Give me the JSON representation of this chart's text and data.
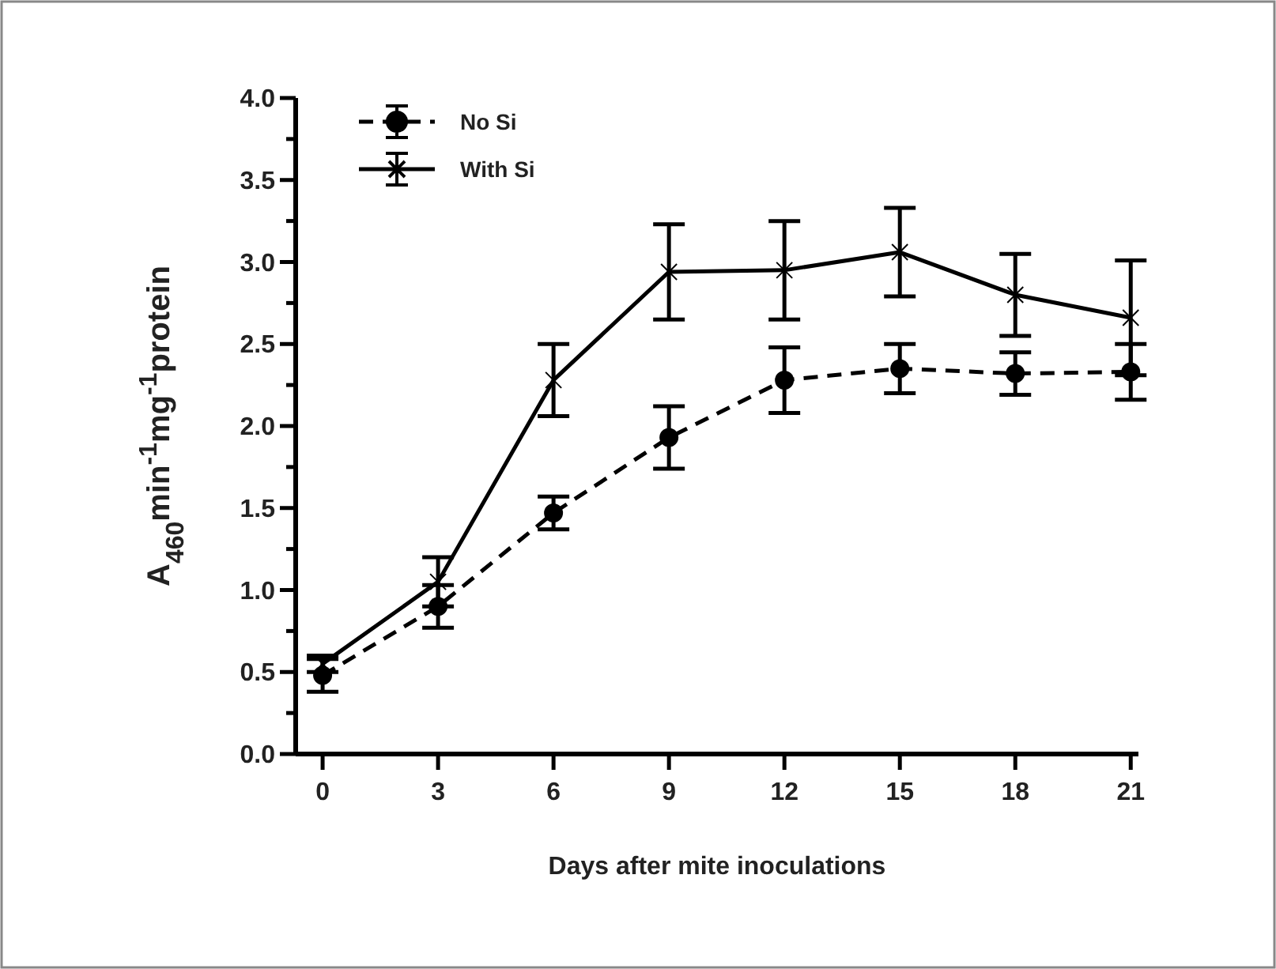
{
  "chart_data": {
    "type": "line",
    "xlabel": "Days after mite inoculations",
    "ylabel": "A$_{460}$min$^{-1}$mg$^{-1}$protein",
    "x": [
      0,
      3,
      6,
      9,
      12,
      15,
      18,
      21
    ],
    "xlim": [
      -0.7,
      21.2
    ],
    "xticks": [
      0,
      3,
      6,
      9,
      12,
      15,
      18,
      21
    ],
    "ylim": [
      0,
      4
    ],
    "yticks": [
      {
        "value": 0,
        "label": "0.0"
      },
      {
        "value": 0.25,
        "label": null
      },
      0.5,
      {
        "value": 0.75,
        "label": null
      },
      {
        "value": 1,
        "label": "1.0"
      },
      {
        "value": 1.25,
        "label": null
      },
      1.5,
      {
        "value": 1.75,
        "label": null
      },
      {
        "value": 2,
        "label": "2.0"
      },
      {
        "value": 2.25,
        "label": null
      },
      2.5,
      {
        "value": 2.75,
        "label": null
      },
      {
        "value": 3,
        "label": "3.0"
      },
      {
        "value": 3.25,
        "label": null
      },
      3.5,
      {
        "value": 3.75,
        "label": null
      },
      {
        "value": 4,
        "label": "4.0"
      }
    ],
    "grid": false,
    "legend": "top left",
    "series": [
      {
        "name": "No Si",
        "color": "#000000",
        "marker": "circle",
        "line_style": "dashed",
        "values": [
          0.48,
          0.9,
          1.47,
          1.93,
          2.28,
          2.35,
          2.32,
          2.33
        ],
        "errors": [
          0.1,
          0.13,
          0.1,
          0.19,
          0.2,
          0.15,
          0.13,
          0.17
        ]
      },
      {
        "name": "With Si",
        "color": "#000000",
        "marker": "cross",
        "line_style": "solid",
        "values": [
          0.55,
          1.05,
          2.28,
          2.94,
          2.95,
          3.06,
          2.8,
          2.66
        ],
        "errors": [
          0.05,
          0.15,
          0.22,
          0.29,
          0.3,
          0.27,
          0.25,
          0.35
        ]
      }
    ]
  }
}
